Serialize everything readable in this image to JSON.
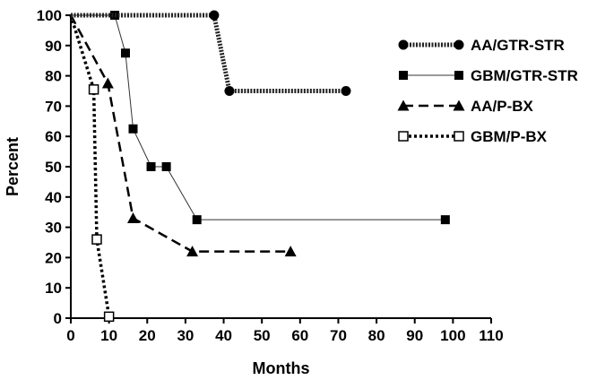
{
  "chart_data": {
    "type": "line",
    "title": "",
    "xlabel": "Months",
    "ylabel": "Percent",
    "xlim": [
      0,
      110
    ],
    "ylim": [
      0,
      100
    ],
    "xticks": [
      0,
      10,
      20,
      30,
      40,
      50,
      60,
      70,
      80,
      90,
      100,
      110
    ],
    "yticks": [
      0,
      10,
      20,
      30,
      40,
      50,
      60,
      70,
      80,
      90,
      100
    ],
    "grid": false,
    "legend_position": "top-right",
    "series": [
      {
        "name": "AA/GTR-STR",
        "marker": "circle",
        "line_style": "dotted-thick",
        "step": true,
        "points": [
          [
            0,
            100
          ],
          [
            37.5,
            100
          ],
          [
            41.5,
            75
          ],
          [
            72,
            75
          ]
        ]
      },
      {
        "name": "GBM/GTR-STR",
        "marker": "square",
        "line_style": "solid-thin",
        "step": false,
        "points": [
          [
            0,
            100
          ],
          [
            11.5,
            100
          ],
          [
            14.3,
            87.5
          ],
          [
            16.3,
            62.5
          ],
          [
            21,
            50
          ],
          [
            25,
            50
          ],
          [
            33,
            32.5
          ],
          [
            98,
            32.5
          ]
        ]
      },
      {
        "name": "AA/P-BX",
        "marker": "triangle",
        "line_style": "dashed",
        "step": false,
        "points": [
          [
            0,
            100
          ],
          [
            9.7,
            77.5
          ],
          [
            16.3,
            33
          ],
          [
            31.8,
            22
          ],
          [
            57.5,
            22
          ]
        ]
      },
      {
        "name": "GBM/P-BX",
        "marker": "open-square",
        "line_style": "dotted",
        "step": false,
        "points": [
          [
            0,
            100
          ],
          [
            6,
            75.5
          ],
          [
            6.8,
            26
          ],
          [
            10,
            0.5
          ]
        ]
      }
    ]
  }
}
